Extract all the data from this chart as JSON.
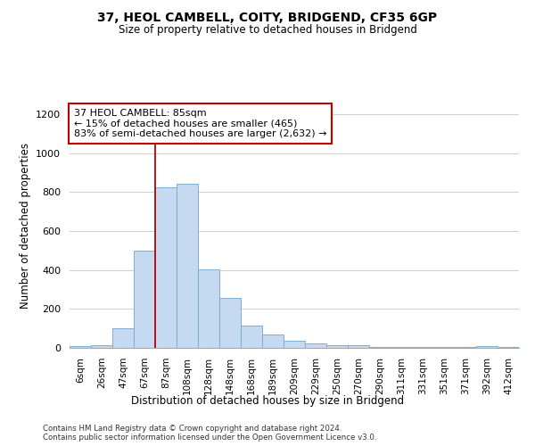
{
  "title1": "37, HEOL CAMBELL, COITY, BRIDGEND, CF35 6GP",
  "title2": "Size of property relative to detached houses in Bridgend",
  "xlabel": "Distribution of detached houses by size in Bridgend",
  "ylabel": "Number of detached properties",
  "footer1": "Contains HM Land Registry data © Crown copyright and database right 2024.",
  "footer2": "Contains public sector information licensed under the Open Government Licence v3.0.",
  "categories": [
    "6sqm",
    "26sqm",
    "47sqm",
    "67sqm",
    "87sqm",
    "108sqm",
    "128sqm",
    "148sqm",
    "168sqm",
    "189sqm",
    "209sqm",
    "229sqm",
    "250sqm",
    "270sqm",
    "290sqm",
    "311sqm",
    "331sqm",
    "351sqm",
    "371sqm",
    "392sqm",
    "412sqm"
  ],
  "values": [
    10,
    15,
    100,
    500,
    825,
    845,
    405,
    255,
    115,
    70,
    35,
    25,
    15,
    15,
    5,
    5,
    5,
    5,
    5,
    10,
    5
  ],
  "bar_color": "#c5d9f0",
  "bar_edge_color": "#7bafd4",
  "highlight_color": "#c00000",
  "ylim": [
    0,
    1260
  ],
  "yticks": [
    0,
    200,
    400,
    600,
    800,
    1000,
    1200
  ],
  "annotation_text": "37 HEOL CAMBELL: 85sqm\n← 15% of detached houses are smaller (465)\n83% of semi-detached houses are larger (2,632) →",
  "annotation_box_color": "#ffffff",
  "annotation_box_edge": "#c00000",
  "property_line_index": 4,
  "background_color": "#ffffff",
  "grid_color": "#d0d0d0"
}
